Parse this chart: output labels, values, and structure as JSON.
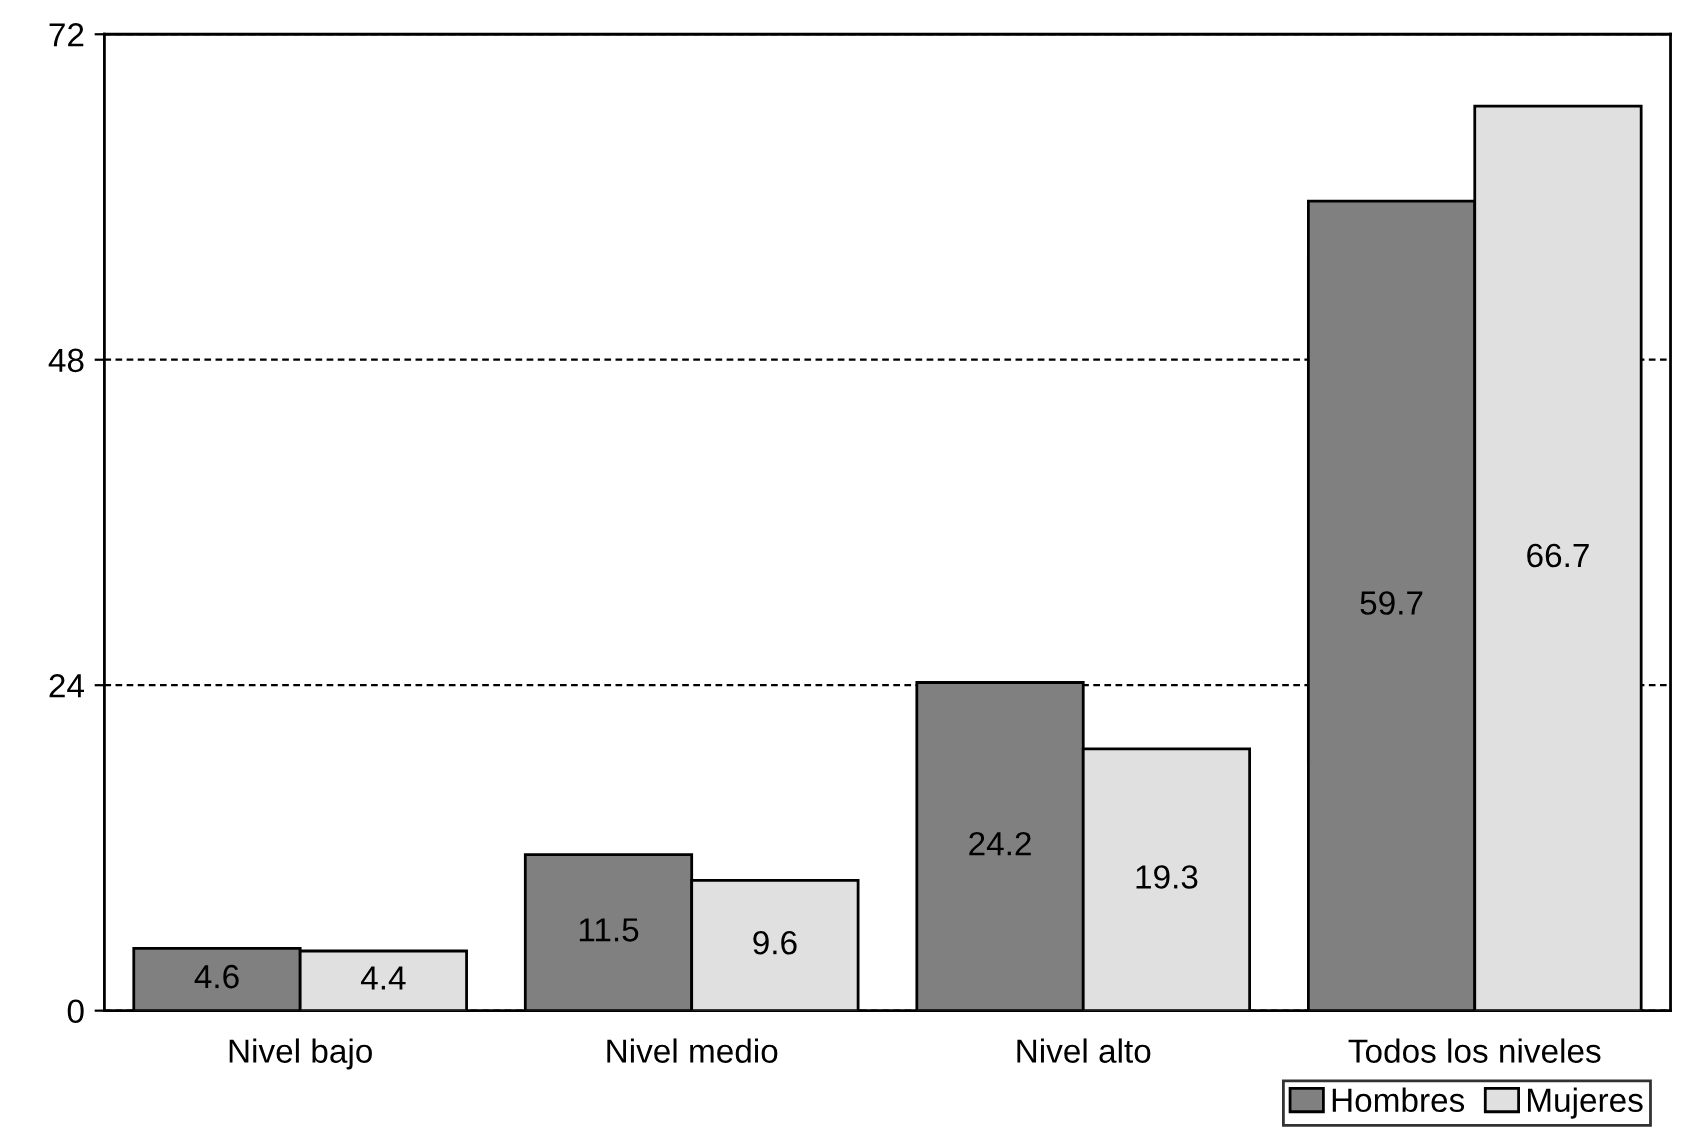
{
  "chart_data": {
    "type": "bar",
    "categories": [
      "Nivel bajo",
      "Nivel medio",
      "Nivel alto",
      "Todos los niveles"
    ],
    "series": [
      {
        "name": "Hombres",
        "color": "#808080",
        "values": [
          4.6,
          11.5,
          24.2,
          59.7
        ]
      },
      {
        "name": "Mujeres",
        "color": "#e0e0e0",
        "values": [
          4.4,
          9.6,
          19.3,
          66.7
        ]
      }
    ],
    "ylim": [
      0,
      72
    ],
    "yticks": [
      0,
      24,
      48,
      72
    ],
    "grid": "y",
    "line_style": "dashed",
    "data_labels": true,
    "legend": "bottom right"
  }
}
